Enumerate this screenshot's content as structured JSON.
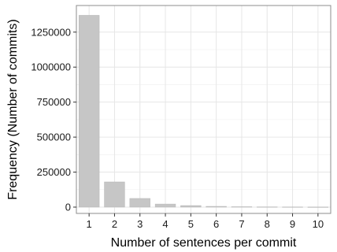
{
  "chart_data": {
    "type": "bar",
    "title": "",
    "xlabel": "Number of sentences per commit",
    "ylabel": "Frequency (Number of commits)",
    "categories": [
      "1",
      "2",
      "3",
      "4",
      "5",
      "6",
      "7",
      "8",
      "9",
      "10"
    ],
    "values": [
      1370000,
      180000,
      62000,
      22000,
      11000,
      5500,
      3000,
      2000,
      1500,
      1000
    ],
    "ylim": [
      -45000,
      1440000
    ],
    "yticks": [
      0,
      250000,
      500000,
      750000,
      1000000,
      1250000
    ],
    "ytick_labels": [
      "0",
      "250000",
      "500000",
      "750000",
      "1000000",
      "1250000"
    ],
    "grid": true,
    "legend": "none",
    "colors": {
      "bar": "#c6c6c6",
      "bar_stroke": "#b8b8b8",
      "grid_major": "#e6e6e6",
      "grid_minor": "#f3f3f3",
      "panel_border": "#8c8c8c"
    }
  }
}
